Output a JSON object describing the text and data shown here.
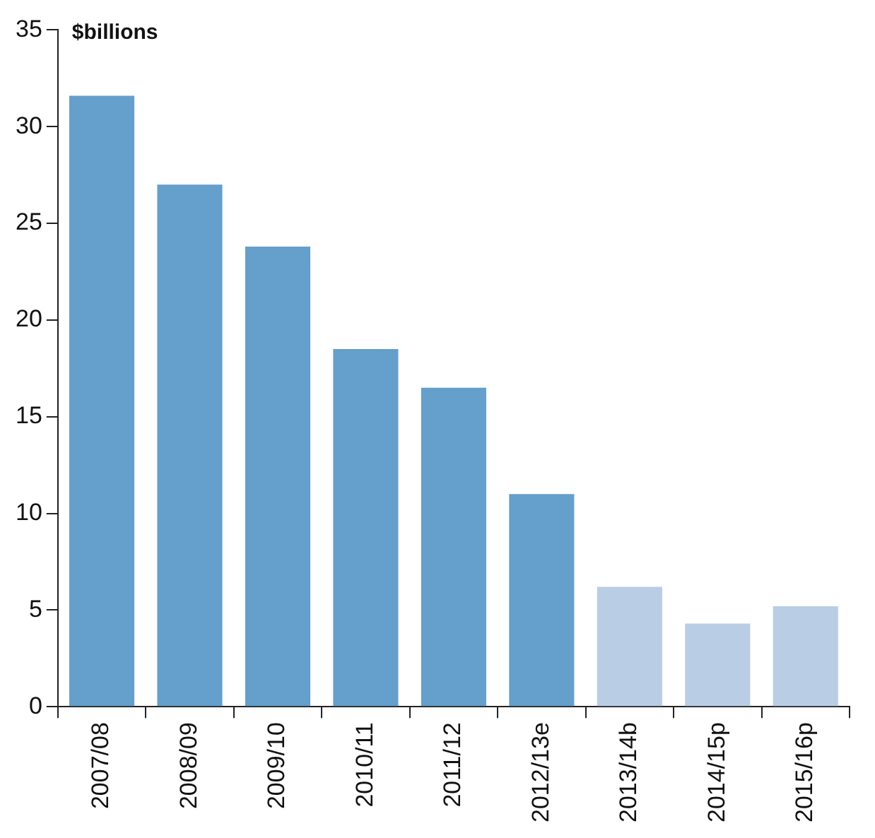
{
  "chart_data": {
    "type": "bar",
    "ylabel": "$billions",
    "categories": [
      "2007/08",
      "2008/09",
      "2009/10",
      "2010/11",
      "2011/12",
      "2012/13e",
      "2013/14b",
      "2014/15p",
      "2015/16p"
    ],
    "values": [
      31.6,
      27.0,
      23.8,
      18.5,
      16.5,
      11.0,
      6.2,
      4.3,
      5.2
    ],
    "colors": [
      "#659fcb",
      "#659fcb",
      "#659fcb",
      "#659fcb",
      "#659fcb",
      "#659fcb",
      "#b9cde5",
      "#b9cde5",
      "#b9cde5"
    ],
    "ylim": [
      0,
      35
    ],
    "yticks": [
      0,
      5,
      10,
      15,
      20,
      25,
      30,
      35
    ],
    "grid": false,
    "legend": false
  }
}
